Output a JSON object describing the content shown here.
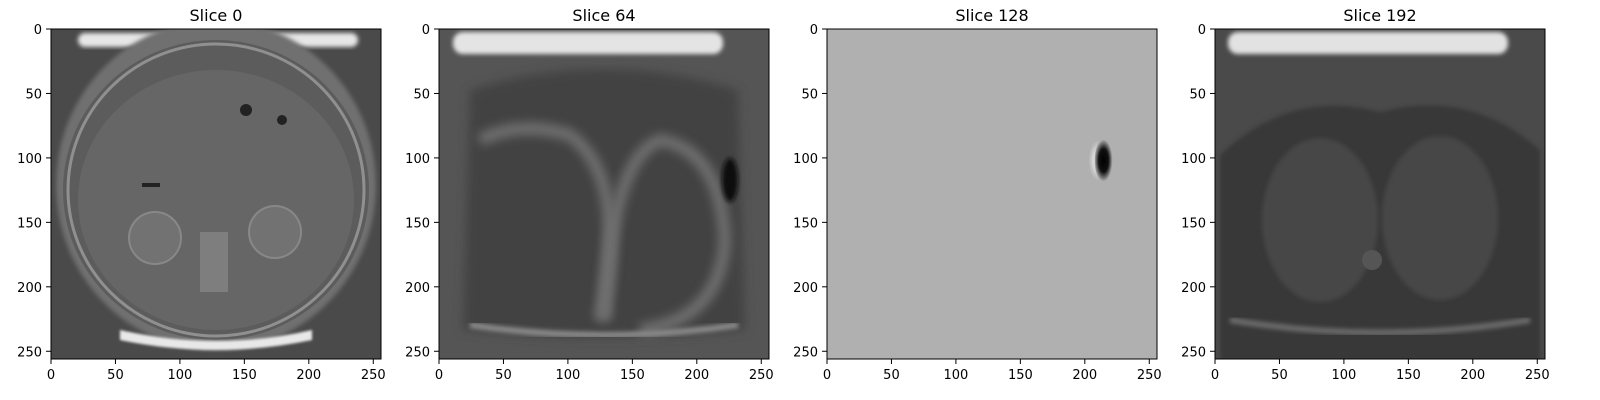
{
  "chart_data": [
    {
      "type": "heatmap",
      "title": "Slice 0",
      "xlabel": "",
      "ylabel": "",
      "colormap": "gray",
      "xlim": [
        0,
        256
      ],
      "ylim": [
        256,
        0
      ],
      "x_ticks": [
        0,
        50,
        100,
        150,
        200,
        250
      ],
      "y_ticks": [
        0,
        50,
        100,
        150,
        200,
        250
      ],
      "content": "abdomen axial slice"
    },
    {
      "type": "heatmap",
      "title": "Slice 64",
      "xlabel": "",
      "ylabel": "",
      "colormap": "gray",
      "xlim": [
        0,
        256
      ],
      "ylim": [
        256,
        0
      ],
      "x_ticks": [
        0,
        50,
        100,
        150,
        200,
        250
      ],
      "y_ticks": [
        0,
        50,
        100,
        150,
        200,
        250
      ],
      "content": "blurred torso slice"
    },
    {
      "type": "heatmap",
      "title": "Slice 128",
      "xlabel": "",
      "ylabel": "",
      "colormap": "gray",
      "xlim": [
        0,
        256
      ],
      "ylim": [
        256,
        0
      ],
      "x_ticks": [
        0,
        50,
        100,
        150,
        200,
        250
      ],
      "y_ticks": [
        0,
        50,
        100,
        150,
        200,
        250
      ],
      "content": "uniform field with single blob",
      "blob_center": [
        213,
        102
      ],
      "background": "#b0b0b0"
    },
    {
      "type": "heatmap",
      "title": "Slice 192",
      "xlabel": "",
      "ylabel": "",
      "colormap": "gray",
      "xlim": [
        0,
        256
      ],
      "ylim": [
        256,
        0
      ],
      "x_ticks": [
        0,
        50,
        100,
        150,
        200,
        250
      ],
      "y_ticks": [
        0,
        50,
        100,
        150,
        200,
        250
      ],
      "content": "dark torso slice"
    }
  ]
}
